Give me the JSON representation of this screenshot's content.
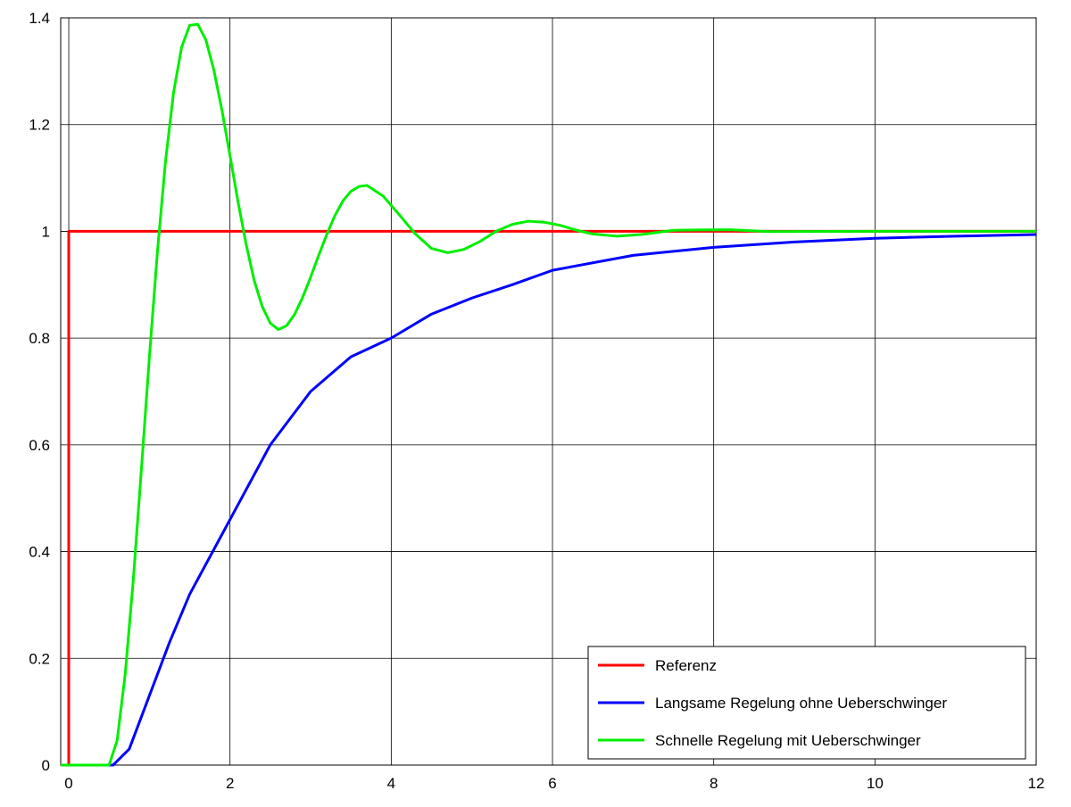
{
  "chart_data": {
    "type": "line",
    "xlim": [
      -0.1,
      12
    ],
    "ylim": [
      0,
      1.4
    ],
    "xticks": [
      0,
      2,
      4,
      6,
      8,
      10,
      12
    ],
    "yticks": [
      0,
      0.2,
      0.4,
      0.6,
      0.8,
      1,
      1.2,
      1.4
    ],
    "grid": true,
    "legend": "lower right",
    "series": [
      {
        "name": "Referenz",
        "color": "#ff0000",
        "x": [
          -0.1,
          0,
          0,
          12
        ],
        "values": [
          0,
          0,
          1,
          1
        ]
      },
      {
        "name": "Langsame Regelung ohne Ueberschwinger",
        "color": "#0000ff",
        "x": [
          -0.1,
          0.55,
          0.75,
          1,
          1.25,
          1.5,
          2,
          2.5,
          3,
          3.5,
          4,
          4.5,
          5,
          5.5,
          6,
          7,
          8,
          9,
          10,
          11,
          12
        ],
        "values": [
          0,
          0,
          0.03,
          0.13,
          0.23,
          0.32,
          0.46,
          0.6,
          0.7,
          0.765,
          0.8,
          0.845,
          0.875,
          0.9,
          0.927,
          0.955,
          0.97,
          0.98,
          0.987,
          0.991,
          0.994
        ]
      },
      {
        "name": "Schnelle Regelung mit Ueberschwinger",
        "color": "#00ee00",
        "x": [
          -0.1,
          0.5,
          0.6,
          0.7,
          0.8,
          0.9,
          1.0,
          1.1,
          1.2,
          1.3,
          1.4,
          1.5,
          1.6,
          1.7,
          1.8,
          1.9,
          2.0,
          2.1,
          2.2,
          2.3,
          2.4,
          2.5,
          2.6,
          2.7,
          2.8,
          2.9,
          3.0,
          3.1,
          3.2,
          3.3,
          3.4,
          3.5,
          3.6,
          3.7,
          3.9,
          4.1,
          4.3,
          4.5,
          4.7,
          4.9,
          5.1,
          5.3,
          5.5,
          5.7,
          5.9,
          6.1,
          6.3,
          6.5,
          6.8,
          7.1,
          7.5,
          7.8,
          8.2,
          8.7,
          10,
          12
        ],
        "values": [
          0,
          0,
          0.046,
          0.17,
          0.346,
          0.552,
          0.764,
          0.962,
          1.131,
          1.26,
          1.345,
          1.386,
          1.388,
          1.359,
          1.302,
          1.227,
          1.142,
          1.055,
          0.976,
          0.908,
          0.859,
          0.828,
          0.816,
          0.823,
          0.844,
          0.876,
          0.914,
          0.955,
          0.994,
          1.029,
          1.057,
          1.075,
          1.084,
          1.086,
          1.066,
          1.031,
          0.995,
          0.968,
          0.96,
          0.966,
          0.981,
          1.0,
          1.013,
          1.019,
          1.017,
          1.011,
          1.002,
          0.995,
          0.991,
          0.994,
          1.002,
          1.0025,
          1.003,
          0.9995,
          1,
          1
        ]
      }
    ]
  }
}
